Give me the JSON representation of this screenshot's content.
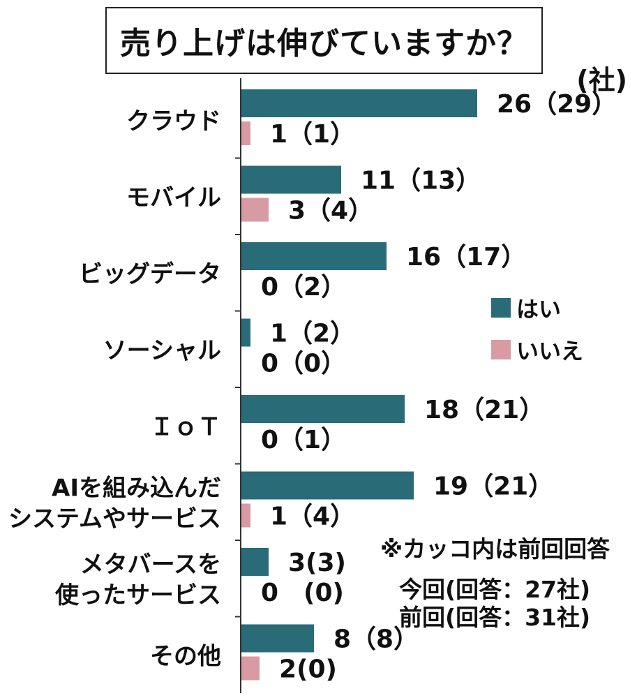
{
  "title": "売り上げは伸びていますか？",
  "unit": "(社)",
  "legend": [
    {
      "name": "はい",
      "color": "#2a6b78"
    },
    {
      "name": "いいえ",
      "color": "#d89ba3"
    }
  ],
  "notes": {
    "bracket": "※カッコ内は前回回答",
    "current": "今回(回答：27社)",
    "previous": "前回(回答：31社)"
  },
  "chart_data": {
    "type": "bar",
    "orientation": "horizontal",
    "categories": [
      [
        "クラウド"
      ],
      [
        "モバイル"
      ],
      [
        "ビッグデータ"
      ],
      [
        "ソーシャル"
      ],
      [
        "ＩｏＴ"
      ],
      [
        "AIを組み込んだ",
        "システムやサービス"
      ],
      [
        "メタバースを",
        "使ったサービス"
      ],
      [
        "その他"
      ]
    ],
    "series": [
      {
        "name": "はい",
        "values": [
          26,
          11,
          16,
          1,
          18,
          19,
          3,
          8
        ],
        "previous": [
          29,
          13,
          17,
          2,
          21,
          21,
          3,
          8
        ],
        "labels": [
          "26（29）",
          "11（13）",
          "16（17）",
          "1（2）",
          "18（21）",
          "19（21）",
          "3(3)",
          "8（8）"
        ]
      },
      {
        "name": "いいえ",
        "values": [
          1,
          3,
          0,
          0,
          0,
          1,
          0,
          2
        ],
        "previous": [
          1,
          4,
          2,
          0,
          1,
          4,
          0,
          0
        ],
        "labels": [
          "1（1）",
          "3（4）",
          "0（2）",
          "0（0）",
          "0（1）",
          "1（4）",
          "0　(0)",
          "2(0)"
        ]
      }
    ]
  }
}
